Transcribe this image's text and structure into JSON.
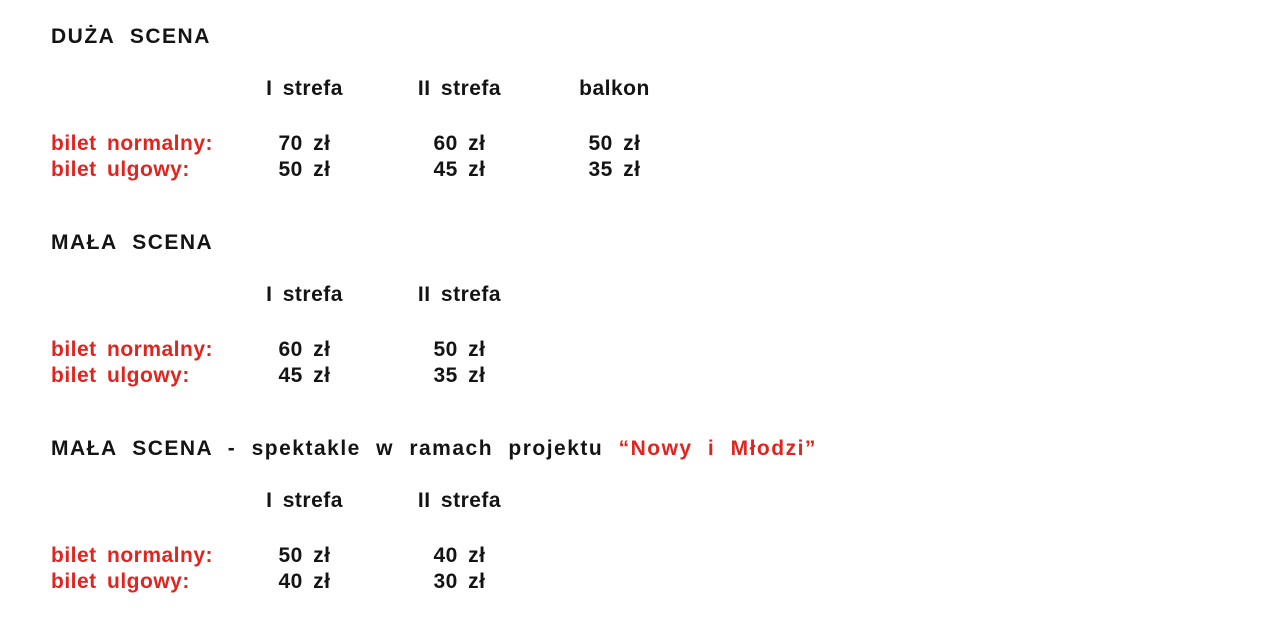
{
  "page": {
    "background": "#ffffff",
    "text_color": "#141414",
    "accent_red": "#e02420"
  },
  "sections": [
    {
      "title": "DUŻA SCENA",
      "title_highlight": "",
      "columns": [
        "I strefa",
        "II strefa",
        "balkon"
      ],
      "rows": [
        {
          "label": "bilet normalny:",
          "values": [
            "70 zł",
            "60 zł",
            "50 zł"
          ]
        },
        {
          "label": "bilet ulgowy:",
          "values": [
            "50 zł",
            "45 zł",
            "35 zł"
          ]
        }
      ]
    },
    {
      "title": "MAŁA SCENA",
      "title_highlight": "",
      "columns": [
        "I strefa",
        "II strefa"
      ],
      "rows": [
        {
          "label": "bilet normalny:",
          "values": [
            "60 zł",
            "50 zł"
          ]
        },
        {
          "label": "bilet ulgowy:",
          "values": [
            "45 zł",
            "35 zł"
          ]
        }
      ]
    },
    {
      "title": "MAŁA SCENA - spektakle w ramach projektu",
      "title_highlight": "“Nowy i Młodzi”",
      "columns": [
        "I strefa",
        "II strefa"
      ],
      "rows": [
        {
          "label": "bilet normalny:",
          "values": [
            "50 zł",
            "40 zł"
          ]
        },
        {
          "label": "bilet ulgowy:",
          "values": [
            "40 zł",
            "30 zł"
          ]
        }
      ]
    }
  ]
}
